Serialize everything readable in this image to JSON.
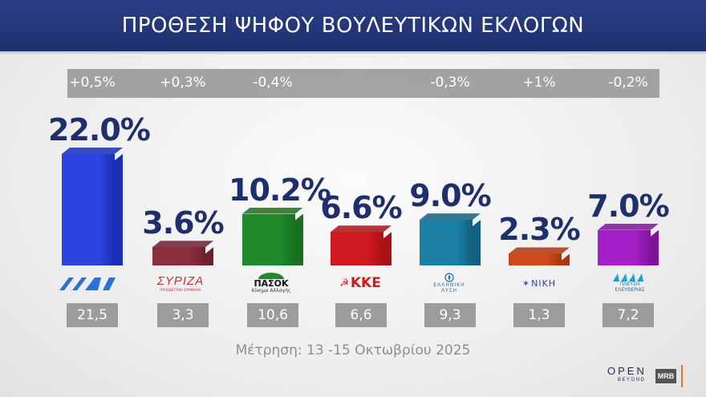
{
  "header": {
    "title": "ΠΡΟΘΕΣΗ ΨΗΦΟΥ ΒΟΥΛΕΥΤΙΚΩΝ ΕΚΛΟΓΩΝ"
  },
  "colors": {
    "title_bg": "#233678",
    "pct_text": "#1f2f6b",
    "band": "#9b9b9b"
  },
  "chart_data": {
    "type": "bar",
    "title": "ΠΡΟΘΕΣΗ ΨΗΦΟΥ ΒΟΥΛΕΥΤΙΚΩΝ ΕΚΛΟΓΩΝ",
    "categories": [
      "ΝΔ",
      "ΣΥΡΙΖΑ",
      "ΠΑΣΟΚ",
      "ΚΚΕ",
      "ΕΛΛΗΝΙΚΗ ΛΥΣΗ",
      "ΝΙΚΗ",
      "ΠΛΕΥΣΗ ΕΛΕΥΘΕΡΙΑΣ"
    ],
    "values": [
      22.0,
      3.6,
      10.2,
      6.6,
      9.0,
      2.3,
      7.0
    ],
    "value_labels": [
      "22.0%",
      "3.6%",
      "10.2%",
      "6.6%",
      "9.0%",
      "2.3%",
      "7.0%"
    ],
    "changes": [
      "+0,5%",
      "+0,3%",
      "-0,4%",
      "",
      "-0,3%",
      "+1%",
      "-0,2%"
    ],
    "previous": [
      "21,5",
      "3,3",
      "10,6",
      "6,6",
      "9,3",
      "1,3",
      "7,2"
    ],
    "bar_colors": [
      "#2b45e0",
      "#8a2f3e",
      "#1f8a2b",
      "#d01a1f",
      "#1c7fa5",
      "#d0491e",
      "#a51fc8"
    ],
    "side_colors": [
      "#1a2fb5",
      "#6d2030",
      "#17701f",
      "#a81217",
      "#145f7e",
      "#a8370f",
      "#7f149c"
    ],
    "ylim": [
      0,
      25
    ]
  },
  "logos": {
    "nd": "ΝΔ",
    "syriza": "ΣΥΡΙΖΑ",
    "syriza_sub": "ΠΡΟΟΔΕΥΤΙΚΗ ΣΥΜΜΑΧΙΑ",
    "pasok": "ΠΑΣΟΚ",
    "pasok_sub": "Κίνημα Αλλαγής",
    "kke": "ΚΚΕ",
    "el_line1": "ΕΛΛΗΝΙΚΗ",
    "el_line2": "ΛΥΣΗ",
    "niki": "ΝΙΚΗ",
    "plefsi_line1": "ΠΛΕΥΣΗ",
    "plefsi_line2": "ΕΛΕΥΘΕΡΙΑΣ"
  },
  "footer": {
    "note": "Μέτρηση: 13 -15 Οκτωβρίου 2025",
    "brand_open": "OPEN",
    "brand_beyond": "BEYOND",
    "brand_mrb": "MRB"
  }
}
